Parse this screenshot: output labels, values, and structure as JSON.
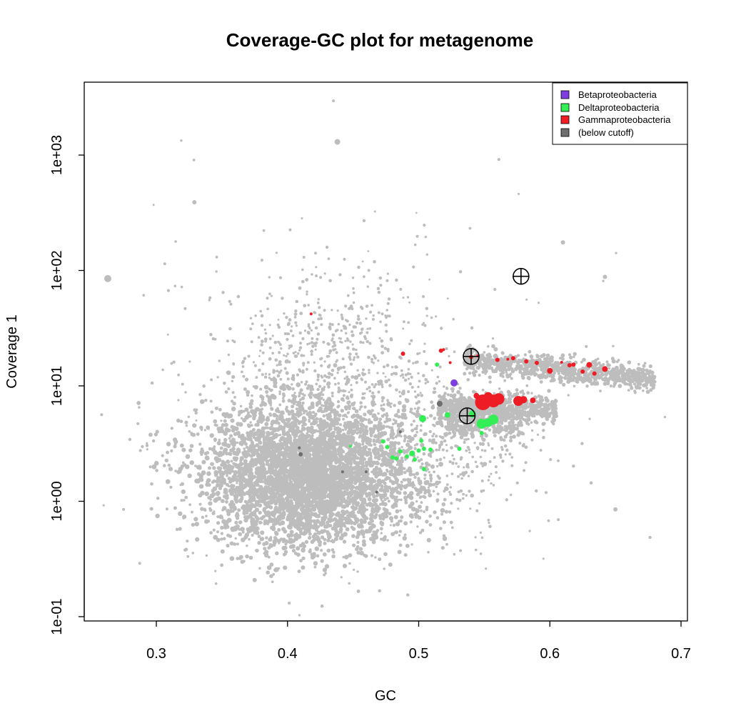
{
  "chart_data": {
    "type": "scatter",
    "title": "Coverage-GC plot for metagenome",
    "xlabel": "GC",
    "ylabel": "Coverage  1",
    "xlim": [
      0.245,
      0.705
    ],
    "y_scale": "log10",
    "ylim": [
      0.08,
      4000
    ],
    "x_ticks": [
      0.3,
      0.4,
      0.5,
      0.6,
      0.7
    ],
    "x_tick_labels": [
      "0.3",
      "0.4",
      "0.5",
      "0.6",
      "0.7"
    ],
    "y_ticks": [
      0.1,
      1,
      10,
      100,
      1000
    ],
    "y_tick_labels": [
      "1e-01",
      "1e+00",
      "1e+01",
      "1e+02",
      "1e+03"
    ],
    "legend": {
      "position": "top-right",
      "entries": [
        {
          "label": "Betaproteobacteria",
          "color": "#7f3fe0"
        },
        {
          "label": "Deltaproteobacteria",
          "color": "#33ee55"
        },
        {
          "label": "Gammaproteobacteria",
          "color": "#ee1c24"
        },
        {
          "label": "(below cutoff)",
          "color": "#6e6e6e"
        }
      ]
    },
    "background_series_color": "#bdbdbd",
    "series": [
      {
        "name": "Betaproteobacteria",
        "color": "#7f3fe0",
        "points": [
          {
            "x": 0.527,
            "y": 10.6,
            "s": 5
          }
        ]
      },
      {
        "name": "Deltaproteobacteria",
        "color": "#33ee55",
        "points": [
          {
            "x": 0.548,
            "y": 4.7,
            "s": 7
          },
          {
            "x": 0.553,
            "y": 4.8,
            "s": 6
          },
          {
            "x": 0.557,
            "y": 5.1,
            "s": 7
          },
          {
            "x": 0.541,
            "y": 5.7,
            "s": 5
          },
          {
            "x": 0.503,
            "y": 5.2,
            "s": 5
          },
          {
            "x": 0.522,
            "y": 5.6,
            "s": 4
          },
          {
            "x": 0.514,
            "y": 15.3,
            "s": 3
          },
          {
            "x": 0.548,
            "y": 3.9,
            "s": 3
          },
          {
            "x": 0.473,
            "y": 3.3,
            "s": 3
          },
          {
            "x": 0.476,
            "y": 2.95,
            "s": 3
          },
          {
            "x": 0.48,
            "y": 2.4,
            "s": 3
          },
          {
            "x": 0.483,
            "y": 2.35,
            "s": 3
          },
          {
            "x": 0.486,
            "y": 2.7,
            "s": 3
          },
          {
            "x": 0.491,
            "y": 2.45,
            "s": 3
          },
          {
            "x": 0.495,
            "y": 2.6,
            "s": 4
          },
          {
            "x": 0.497,
            "y": 2.3,
            "s": 3
          },
          {
            "x": 0.5,
            "y": 2.75,
            "s": 3
          },
          {
            "x": 0.502,
            "y": 3.35,
            "s": 3
          },
          {
            "x": 0.504,
            "y": 2.85,
            "s": 3
          },
          {
            "x": 0.509,
            "y": 2.8,
            "s": 3
          },
          {
            "x": 0.504,
            "y": 1.9,
            "s": 3
          },
          {
            "x": 0.448,
            "y": 3.0,
            "s": 2
          },
          {
            "x": 0.531,
            "y": 2.85,
            "s": 3
          }
        ]
      },
      {
        "name": "Gammaproteobacteria",
        "color": "#ee1c24",
        "points": [
          {
            "x": 0.549,
            "y": 7.2,
            "s": 11
          },
          {
            "x": 0.557,
            "y": 7.4,
            "s": 9
          },
          {
            "x": 0.561,
            "y": 7.7,
            "s": 8
          },
          {
            "x": 0.553,
            "y": 8.1,
            "s": 6
          },
          {
            "x": 0.576,
            "y": 7.4,
            "s": 7
          },
          {
            "x": 0.58,
            "y": 7.6,
            "s": 5
          },
          {
            "x": 0.587,
            "y": 7.5,
            "s": 4
          },
          {
            "x": 0.544,
            "y": 8.2,
            "s": 4
          },
          {
            "x": 0.6,
            "y": 13.5,
            "s": 4
          },
          {
            "x": 0.63,
            "y": 15.2,
            "s": 4
          },
          {
            "x": 0.642,
            "y": 14.0,
            "s": 4
          },
          {
            "x": 0.634,
            "y": 12.8,
            "s": 3
          },
          {
            "x": 0.625,
            "y": 13.3,
            "s": 3
          },
          {
            "x": 0.615,
            "y": 15.1,
            "s": 3
          },
          {
            "x": 0.618,
            "y": 15.3,
            "s": 3
          },
          {
            "x": 0.609,
            "y": 16.0,
            "s": 2
          },
          {
            "x": 0.59,
            "y": 15.8,
            "s": 3
          },
          {
            "x": 0.582,
            "y": 16.3,
            "s": 3
          },
          {
            "x": 0.572,
            "y": 17.4,
            "s": 3
          },
          {
            "x": 0.568,
            "y": 17.0,
            "s": 2
          },
          {
            "x": 0.56,
            "y": 16.8,
            "s": 3
          },
          {
            "x": 0.54,
            "y": 17.8,
            "s": 3
          },
          {
            "x": 0.545,
            "y": 18.2,
            "s": 2
          },
          {
            "x": 0.517,
            "y": 20.2,
            "s": 3
          },
          {
            "x": 0.519,
            "y": 20.6,
            "s": 2
          },
          {
            "x": 0.488,
            "y": 19.0,
            "s": 3
          },
          {
            "x": 0.418,
            "y": 42.0,
            "s": 2
          },
          {
            "x": 0.524,
            "y": 15.9,
            "s": 2
          }
        ]
      },
      {
        "name": "(below cutoff)",
        "color": "#6e6e6e",
        "points": [
          {
            "x": 0.516,
            "y": 7.0,
            "s": 4
          },
          {
            "x": 0.409,
            "y": 2.9,
            "s": 2
          },
          {
            "x": 0.41,
            "y": 2.55,
            "s": 3
          },
          {
            "x": 0.442,
            "y": 1.8,
            "s": 2
          },
          {
            "x": 0.46,
            "y": 1.8,
            "s": 2
          },
          {
            "x": 0.468,
            "y": 1.2,
            "s": 2
          },
          {
            "x": 0.486,
            "y": 4.0,
            "s": 2
          }
        ]
      }
    ],
    "markers": [
      {
        "type": "circle-cross",
        "x": 0.578,
        "y": 89
      },
      {
        "type": "circle-cross",
        "x": 0.54,
        "y": 18
      },
      {
        "type": "circle-cross",
        "x": 0.537,
        "y": 5.5
      }
    ]
  }
}
